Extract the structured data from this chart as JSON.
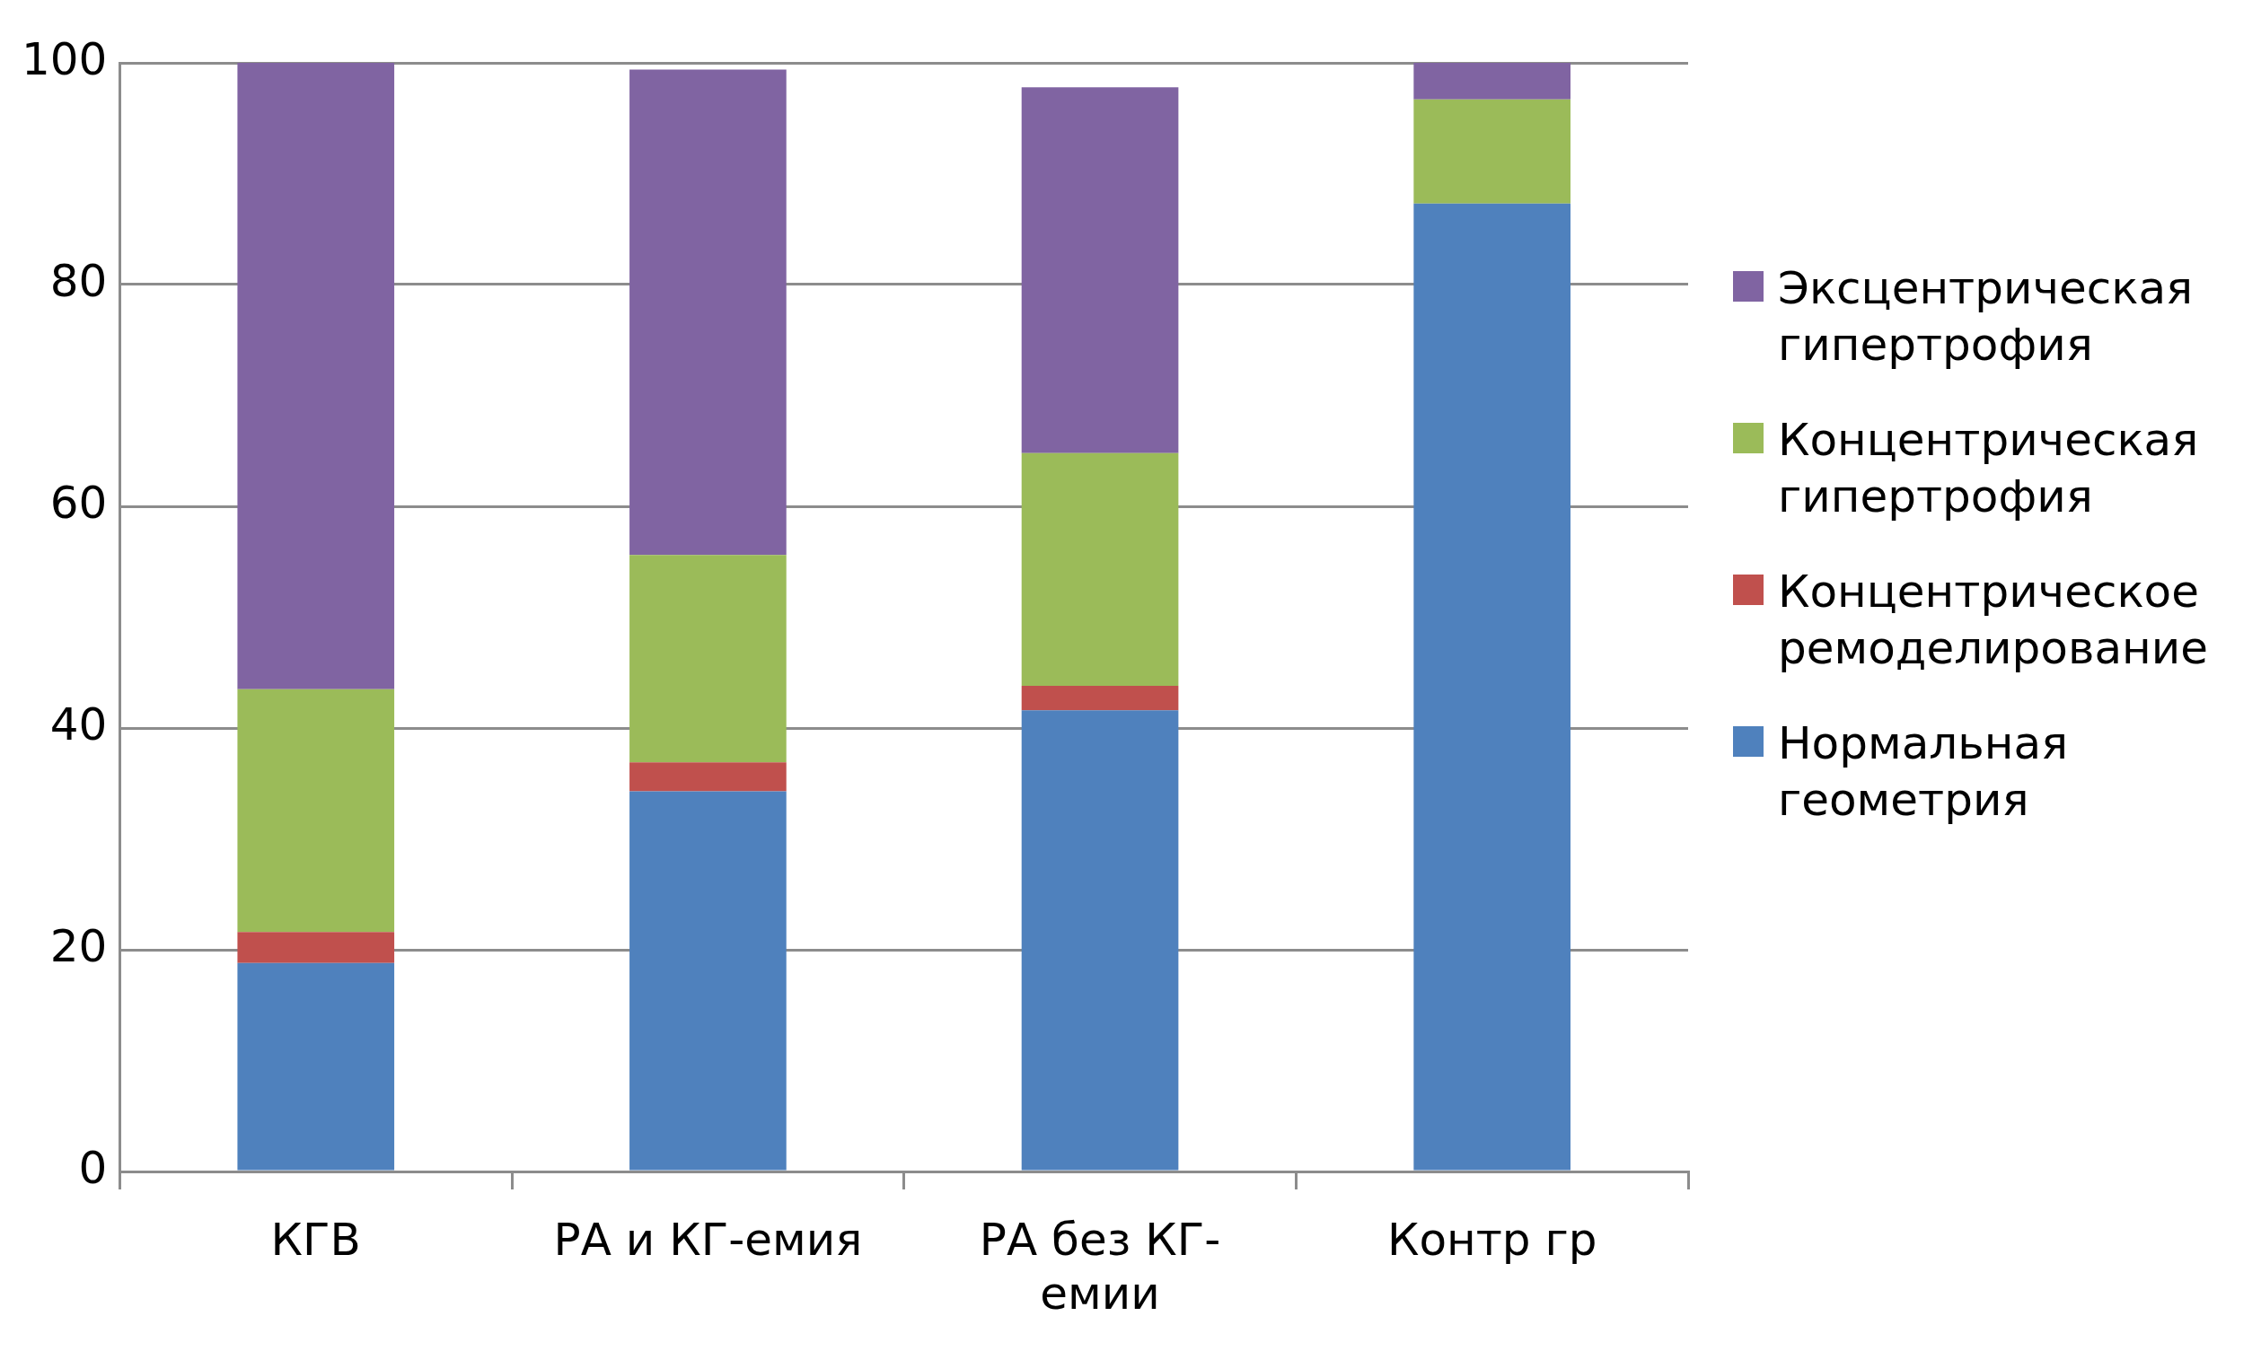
{
  "chart_data": {
    "type": "bar",
    "stacked": true,
    "categories": [
      "КГВ",
      "РА и КГ-емия",
      "РА без КГ-емии",
      "Контр гр"
    ],
    "series": [
      {
        "name": "Нормальная геометрия",
        "color": "#4f81bd",
        "values": [
          18.8,
          34.3,
          41.6,
          87.3
        ]
      },
      {
        "name": "Концентрическое ремоделирование",
        "color": "#c0504d",
        "values": [
          2.8,
          2.6,
          2.2,
          0
        ]
      },
      {
        "name": "Концентрическая гипертрофия",
        "color": "#9bbb59",
        "values": [
          21.9,
          18.7,
          21.0,
          9.4
        ]
      },
      {
        "name": "Эксцентрическая гипертрофия",
        "color": "#8064a2",
        "values": [
          56.5,
          43.8,
          33.0,
          3.3
        ]
      }
    ],
    "ylim": [
      0,
      100
    ],
    "yticks": [
      0,
      20,
      40,
      60,
      80,
      100
    ],
    "grid": "y",
    "legend": "right"
  }
}
